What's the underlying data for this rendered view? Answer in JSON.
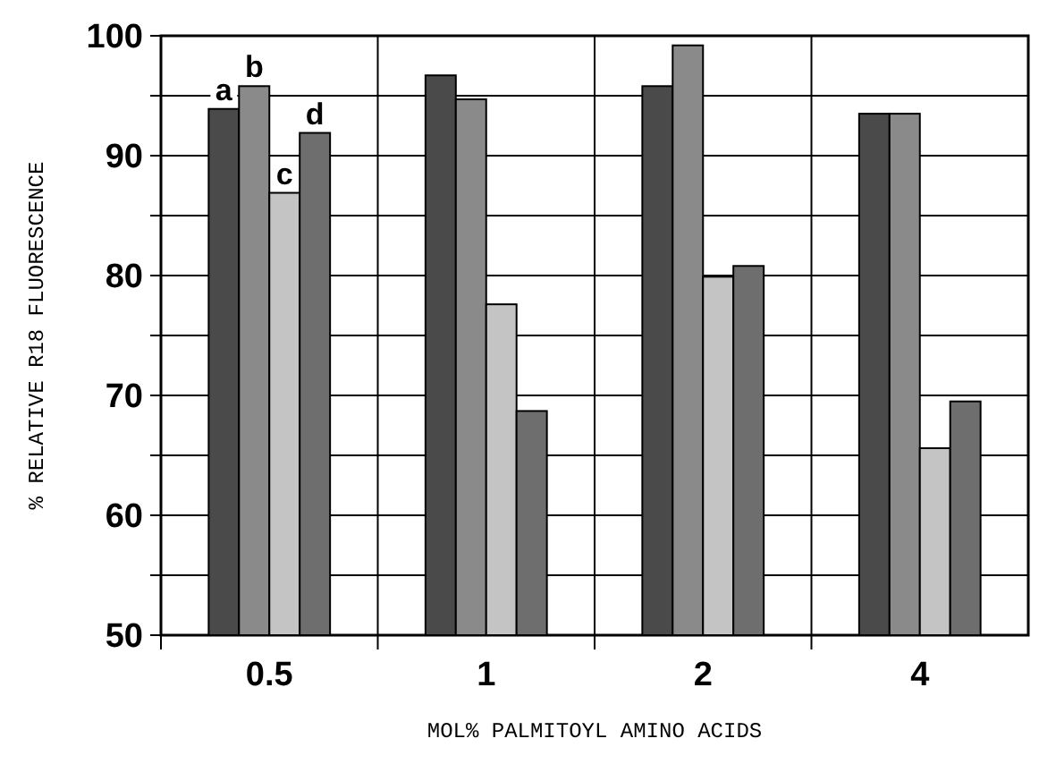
{
  "chart_data": {
    "type": "bar",
    "xlabel": "MOL% PALMITOYL AMINO ACIDS",
    "ylabel": "% RELATIVE R18 FLUORESCENCE",
    "categories": [
      "0.5",
      "1",
      "2",
      "4"
    ],
    "series": [
      {
        "name": "a",
        "color": "#4a4a4a",
        "values": [
          93.9,
          96.7,
          95.8,
          93.5
        ]
      },
      {
        "name": "b",
        "color": "#8a8a8a",
        "values": [
          95.8,
          94.7,
          99.2,
          93.5
        ]
      },
      {
        "name": "c",
        "color": "#c4c4c4",
        "values": [
          86.9,
          77.6,
          79.9,
          65.6
        ]
      },
      {
        "name": "d",
        "color": "#6e6e6e",
        "values": [
          91.9,
          68.7,
          80.8,
          69.5
        ]
      }
    ],
    "ylim": [
      50,
      100
    ],
    "yticks": [
      50,
      {
        "value": 55,
        "label": null
      },
      60,
      {
        "value": 65,
        "label": null
      },
      70,
      {
        "value": 75,
        "label": null
      },
      80,
      {
        "value": 85,
        "label": null
      },
      90,
      {
        "value": 95,
        "label": null
      },
      100
    ],
    "grid": true
  }
}
